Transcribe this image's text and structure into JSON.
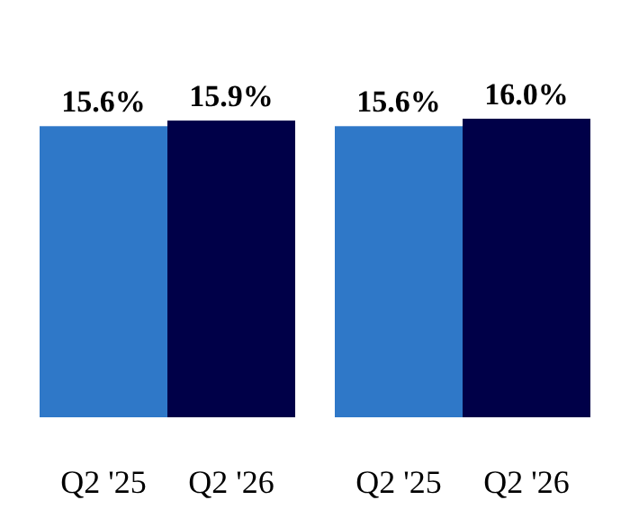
{
  "chart_data": [
    {
      "type": "bar",
      "categories": [
        "Q2 '25",
        "Q2 '26"
      ],
      "values": [
        15.6,
        15.9
      ],
      "value_labels": [
        "15.6%",
        "15.9%"
      ],
      "colors": [
        "#2f78c8",
        "#000048"
      ]
    },
    {
      "type": "bar",
      "categories": [
        "Q2 '25",
        "Q2 '26"
      ],
      "values": [
        15.6,
        16.0
      ],
      "value_labels": [
        "15.6%",
        "16.0%"
      ],
      "colors": [
        "#2f78c8",
        "#000048"
      ]
    }
  ]
}
